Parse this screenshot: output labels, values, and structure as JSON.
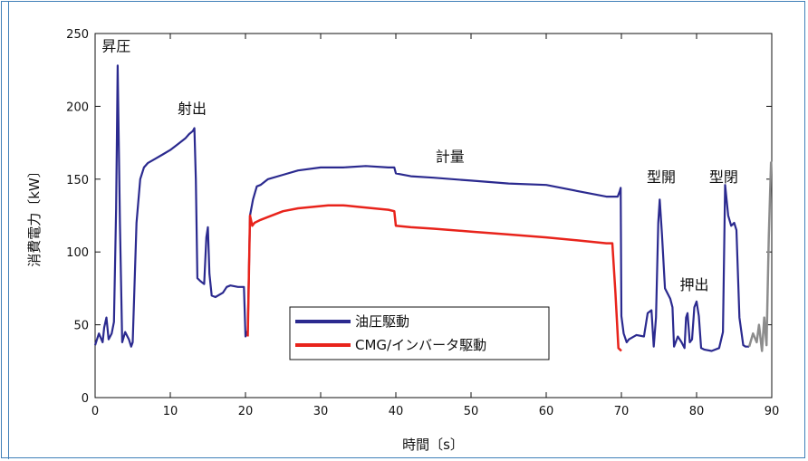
{
  "chart_data": {
    "type": "line",
    "title": "",
    "xlabel": "時間〔s〕",
    "ylabel": "消費電力〔kW〕",
    "xlim": [
      0,
      90
    ],
    "ylim": [
      0,
      250
    ],
    "xticks": [
      "0",
      "10",
      "20",
      "30",
      "40",
      "50",
      "60",
      "70",
      "80",
      "90"
    ],
    "yticks": [
      "0",
      "50",
      "100",
      "150",
      "200",
      "250"
    ],
    "grid": false,
    "legend_position": "center-left",
    "annotations": [
      {
        "text": "昇圧",
        "x": 2.8,
        "y": 238
      },
      {
        "text": "射出",
        "x": 12.9,
        "y": 195
      },
      {
        "text": "計量",
        "x": 47.2,
        "y": 162
      },
      {
        "text": "型開",
        "x": 75.3,
        "y": 148
      },
      {
        "text": "押出",
        "x": 79.7,
        "y": 74
      },
      {
        "text": "型閉",
        "x": 83.6,
        "y": 148
      }
    ],
    "series": [
      {
        "name": "油圧駆動",
        "color": "#2b2a8f",
        "x": [
          0,
          0.5,
          1,
          1.2,
          1.5,
          1.8,
          2.2,
          2.5,
          2.8,
          3.0,
          3.3,
          3.6,
          4.0,
          4.5,
          4.8,
          5.0,
          5.5,
          6.0,
          6.5,
          7,
          8,
          9,
          10,
          11,
          12,
          12.5,
          13.0,
          13.2,
          13.4,
          13.6,
          14,
          14.5,
          14.8,
          15.0,
          15.2,
          15.5,
          16,
          17,
          17.5,
          18,
          19,
          19.8,
          20.0,
          20.3,
          20.6,
          21.0,
          21.5,
          22,
          23,
          25,
          27,
          30,
          33,
          36,
          39,
          39.8,
          40.0,
          42,
          45,
          50,
          55,
          60,
          65,
          68,
          69.5,
          69.8,
          69.9,
          70.0,
          70.3,
          70.7,
          71,
          72,
          73,
          73.5,
          74.0,
          74.3,
          74.6,
          74.9,
          75.1,
          75.4,
          75.8,
          76.5,
          76.8,
          77.0,
          77.5,
          78.0,
          78.4,
          78.6,
          78.8,
          79.1,
          79.4,
          79.7,
          80.0,
          80.3,
          80.6,
          81,
          82,
          83,
          83.5,
          83.8,
          84.2,
          84.6,
          85.0,
          85.3,
          85.7,
          86.2,
          86.5,
          87.0
        ],
        "y": [
          36,
          44,
          38,
          48,
          55,
          40,
          44,
          52,
          130,
          228,
          120,
          38,
          45,
          40,
          35,
          38,
          120,
          150,
          158,
          161,
          164,
          167,
          170,
          174,
          178,
          181,
          183,
          185,
          150,
          82,
          80,
          78,
          110,
          117,
          85,
          70,
          69,
          72,
          76,
          77,
          76,
          76,
          42,
          46,
          125,
          136,
          145,
          146,
          150,
          153,
          156,
          158,
          158,
          159,
          158,
          158,
          154,
          152,
          151,
          149,
          147,
          146,
          141,
          138,
          138,
          142,
          144,
          56,
          44,
          38,
          40,
          43,
          42,
          58,
          60,
          35,
          55,
          120,
          136,
          112,
          75,
          68,
          62,
          35,
          42,
          38,
          34,
          55,
          58,
          38,
          40,
          62,
          66,
          56,
          34,
          33,
          32,
          34,
          45,
          146,
          125,
          118,
          120,
          115,
          55,
          36,
          35,
          35
        ]
      },
      {
        "name": "CMG/インバータ駆動",
        "color": "#e8231b",
        "x": [
          20.3,
          20.6,
          20.9,
          21.2,
          22,
          23,
          25,
          27,
          29,
          31,
          33,
          35,
          37,
          39,
          39.8,
          40.0,
          42,
          45,
          50,
          55,
          60,
          64,
          68,
          68.8,
          69.2,
          69.6,
          70.0
        ],
        "y": [
          42,
          125,
          118,
          120,
          122,
          124,
          128,
          130,
          131,
          132,
          132,
          131,
          130,
          129,
          128,
          118,
          117,
          116,
          114,
          112,
          110,
          108,
          106,
          106,
          72,
          34,
          32
        ]
      },
      {
        "name": "",
        "color": "#8c8c8c",
        "x": [
          87.0,
          87.5,
          88.0,
          88.3,
          88.7,
          89.0,
          89.3,
          89.6,
          89.9
        ],
        "y": [
          35,
          44,
          38,
          50,
          32,
          55,
          36,
          110,
          162
        ]
      }
    ]
  }
}
